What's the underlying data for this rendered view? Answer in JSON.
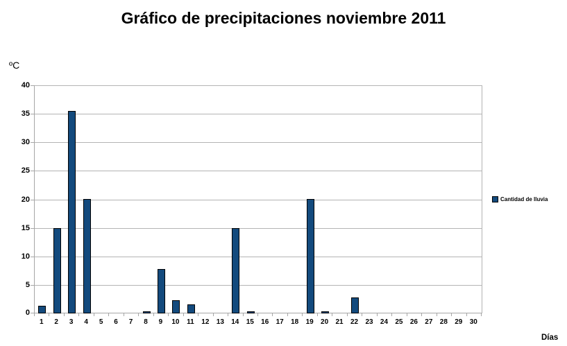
{
  "chart_data": {
    "type": "bar",
    "title": "Gráfico de precipitaciones noviembre 2011",
    "ylabel": "ºC",
    "xlabel": "Días",
    "legend": "Cantidad de lluvia",
    "legend_position": "right",
    "grid": true,
    "categories": [
      "1",
      "2",
      "3",
      "4",
      "5",
      "6",
      "7",
      "8",
      "9",
      "10",
      "11",
      "12",
      "13",
      "14",
      "15",
      "16",
      "17",
      "18",
      "19",
      "20",
      "21",
      "22",
      "23",
      "24",
      "25",
      "26",
      "27",
      "28",
      "29",
      "30"
    ],
    "values": [
      1.3,
      15,
      35.5,
      20,
      0,
      0,
      0,
      0.4,
      7.8,
      2.3,
      1.6,
      0,
      0,
      15,
      0.4,
      0,
      0,
      0,
      20,
      0.4,
      0,
      2.8,
      0,
      0,
      0,
      0,
      0,
      0,
      0,
      0
    ],
    "ylim": [
      0,
      40
    ],
    "ytick_step": 5,
    "colors": {
      "bar_fill": "#134a7d",
      "bar_border": "#000000",
      "gridline": "#b3b3b3",
      "axis": "#a6a6a6",
      "text": "#000000",
      "background": "#ffffff"
    }
  }
}
